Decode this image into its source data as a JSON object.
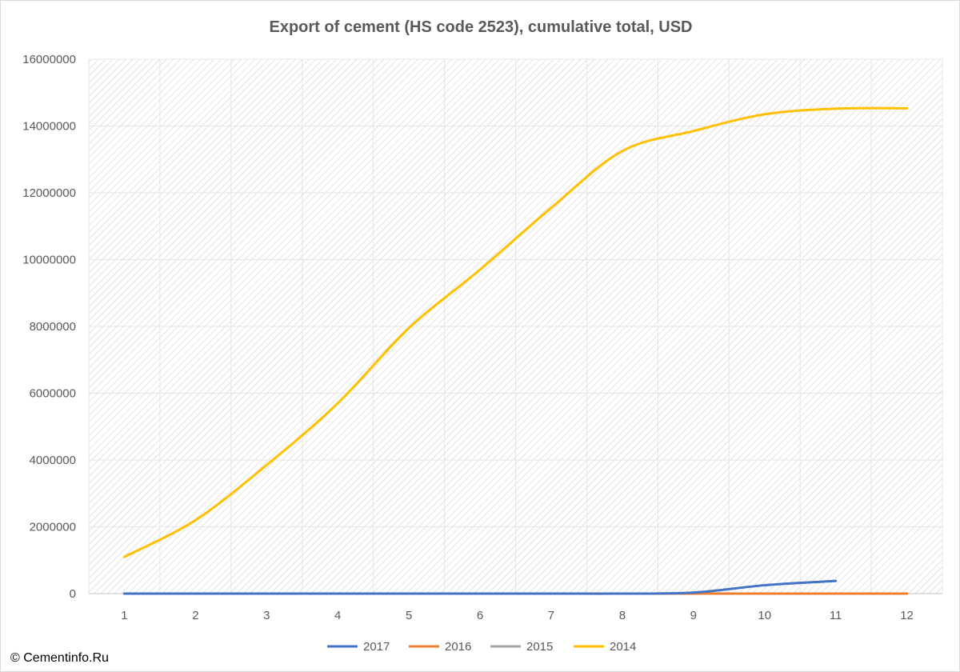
{
  "chart_data": {
    "type": "line",
    "title": "Export of cement (HS code 2523), cumulative total, USD",
    "xlabel": "",
    "ylabel": "",
    "x": [
      1,
      2,
      3,
      4,
      5,
      6,
      7,
      8,
      9,
      10,
      11,
      12
    ],
    "y_ticks": [
      0,
      2000000,
      4000000,
      6000000,
      8000000,
      10000000,
      12000000,
      14000000,
      16000000
    ],
    "ylim": [
      0,
      16000000
    ],
    "grid": true,
    "legend_position": "bottom",
    "series": [
      {
        "name": "2017",
        "color": "#4472C4",
        "values": [
          0,
          0,
          0,
          0,
          0,
          0,
          0,
          0,
          30000,
          250000,
          380000,
          null
        ]
      },
      {
        "name": "2016",
        "color": "#ED7D31",
        "values": [
          0,
          0,
          0,
          0,
          0,
          0,
          0,
          0,
          0,
          0,
          0,
          0
        ]
      },
      {
        "name": "2015",
        "color": "#A5A5A5",
        "values": [
          0,
          0,
          0,
          0,
          0,
          0,
          0,
          0,
          0,
          0,
          0,
          0
        ]
      },
      {
        "name": "2014",
        "color": "#FFC000",
        "values": [
          1100000,
          2200000,
          3850000,
          5700000,
          7950000,
          9700000,
          11550000,
          13250000,
          13850000,
          14350000,
          14520000,
          14530000
        ]
      }
    ]
  },
  "credit": "© Cementinfo.Ru"
}
